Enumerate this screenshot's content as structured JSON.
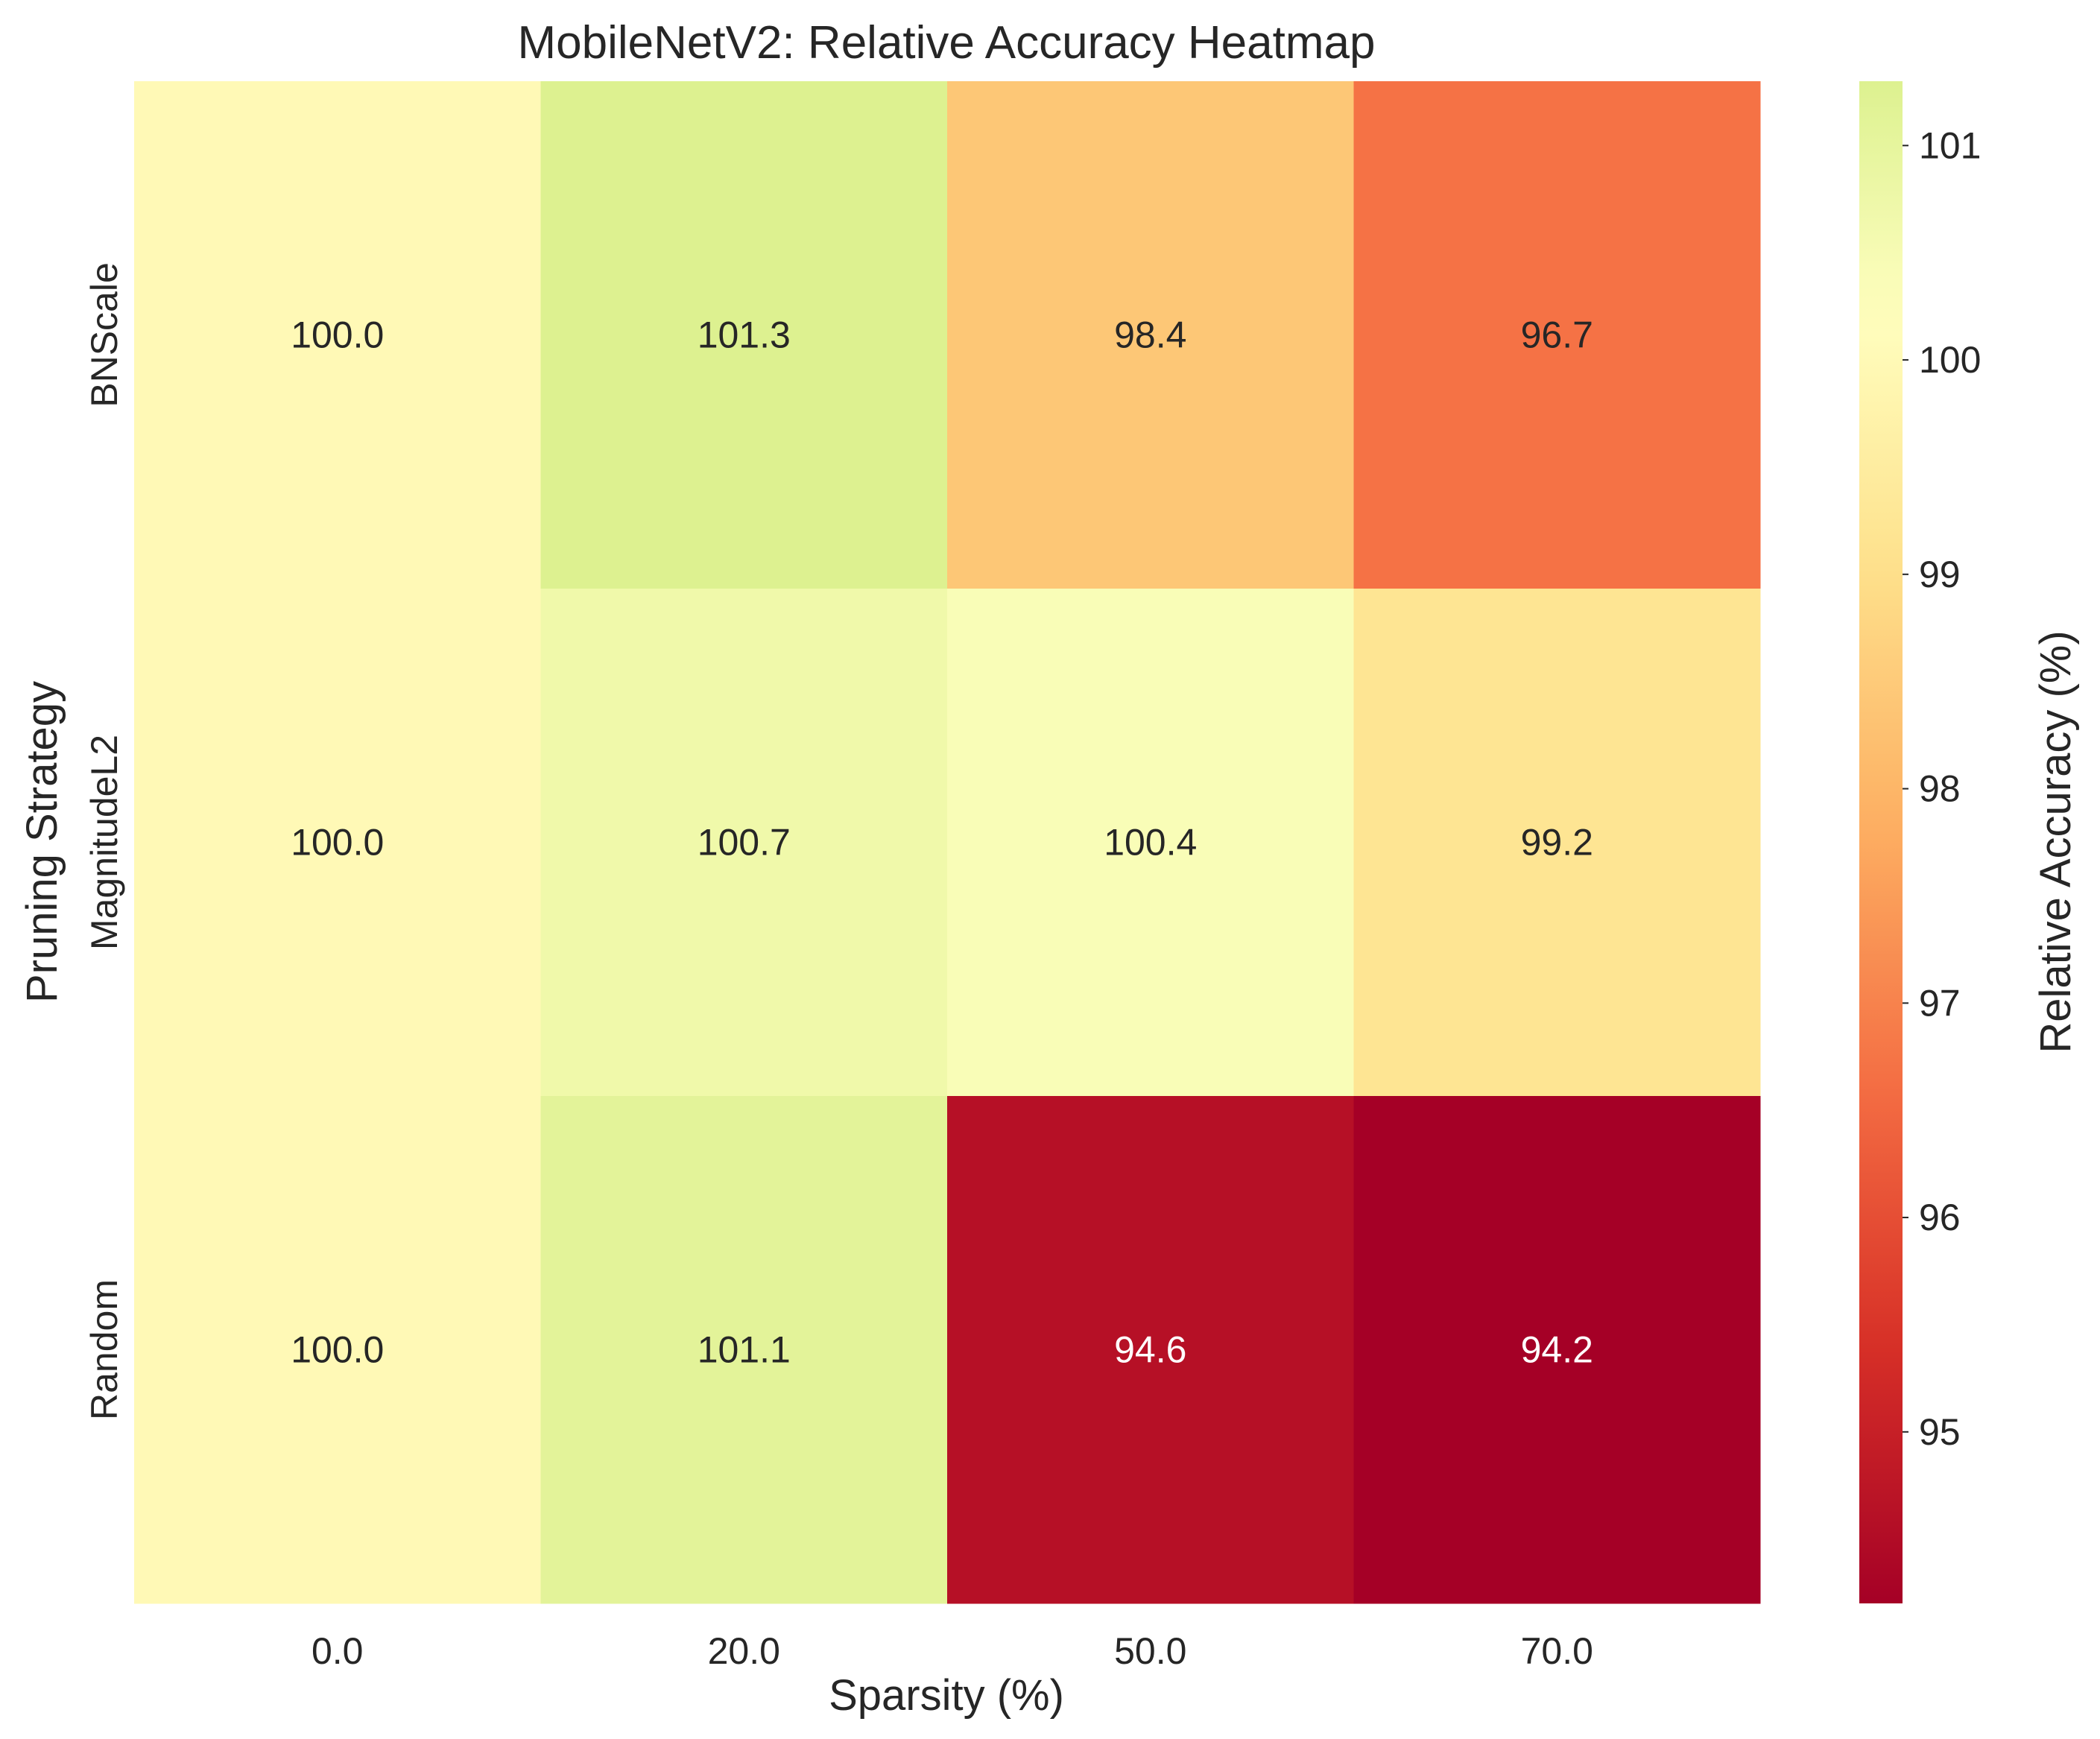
{
  "chart_data": {
    "type": "heatmap",
    "title": "MobileNetV2: Relative Accuracy Heatmap",
    "xlabel": "Sparsity (%)",
    "ylabel": "Pruning Strategy",
    "x_categories": [
      "0.0",
      "20.0",
      "50.0",
      "70.0"
    ],
    "y_categories": [
      "BNScale",
      "MagnitudeL2",
      "Random"
    ],
    "values": [
      [
        100.0,
        101.3,
        98.4,
        96.7
      ],
      [
        100.0,
        100.7,
        100.4,
        99.2
      ],
      [
        100.0,
        101.1,
        94.6,
        94.2
      ]
    ],
    "colorbar": {
      "label": "Relative Accuracy (%)",
      "vmin": 94.2,
      "vmax": 101.3,
      "ticks": [
        95,
        96,
        97,
        98,
        99,
        100,
        101
      ],
      "colormap": "RdYlGn"
    },
    "grid": false
  }
}
